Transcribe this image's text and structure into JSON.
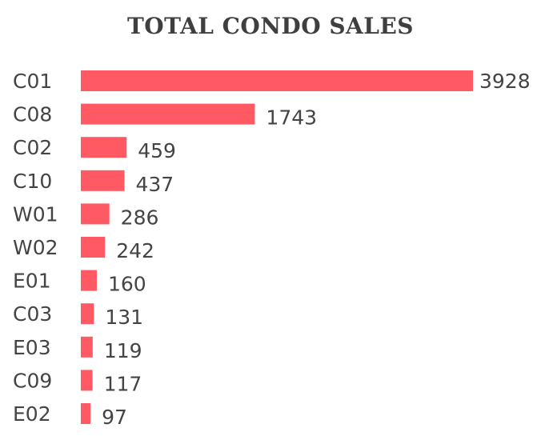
{
  "chart_data": {
    "type": "bar",
    "orientation": "horizontal",
    "title": "TOTAL CONDO SALES",
    "categories": [
      "C01",
      "C08",
      "C02",
      "C10",
      "W01",
      "W02",
      "E01",
      "C03",
      "E03",
      "C09",
      "E02"
    ],
    "values": [
      3928,
      1743,
      459,
      437,
      286,
      242,
      160,
      131,
      119,
      117,
      97
    ],
    "bar_color": "#ff5a63",
    "xlabel": "",
    "ylabel": "",
    "grid": false,
    "legend": "none"
  }
}
